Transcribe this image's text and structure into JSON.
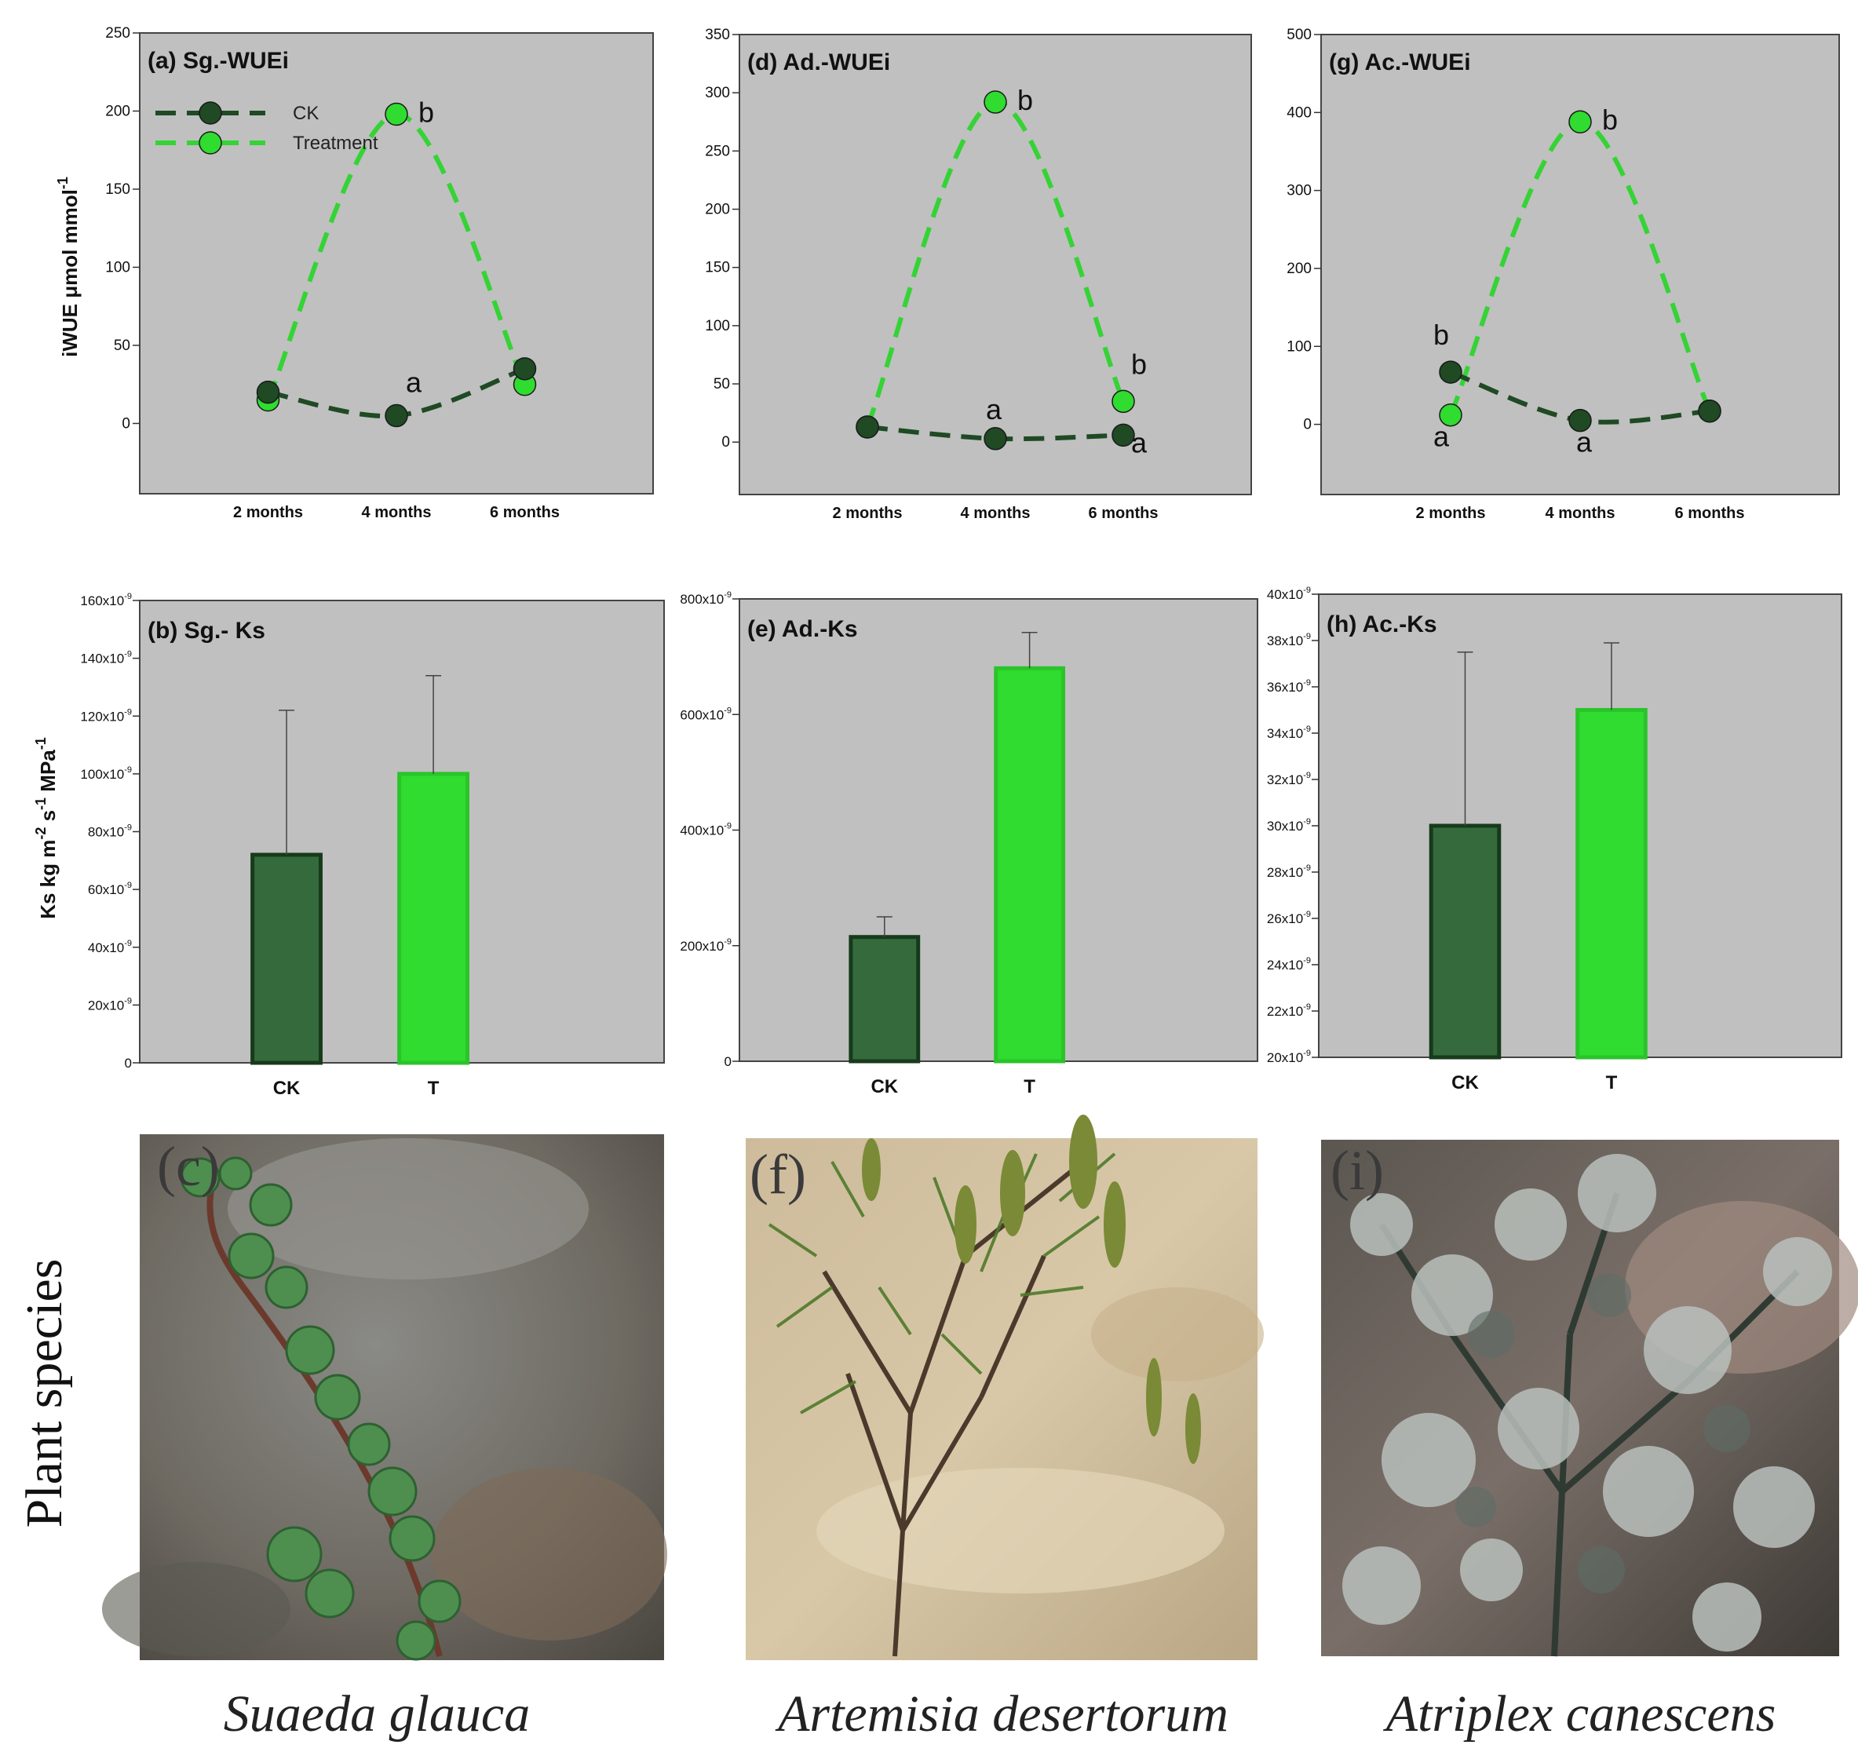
{
  "colors": {
    "ck": "#1f4a24",
    "ck_bar": "#356b3c",
    "treatment": "#2fdc2f",
    "treatment_line": "#35d335",
    "plot_bg": "#c0c0c0"
  },
  "y_labels": {
    "row1": "iWUE   μmol mmol",
    "row1_sup": "-1",
    "row2_parts": [
      "Ks    kg m",
      "-2",
      " s",
      "-1",
      " MPa",
      "-1"
    ]
  },
  "side_label": "Plant species",
  "legend": {
    "ck": "CK",
    "treatment": "Treatment"
  },
  "chart_data": [
    {
      "id": "a",
      "type": "line",
      "title": "(a) Sg.-WUEi",
      "categories": [
        "2 months",
        "4 months",
        "6 months"
      ],
      "ylim": [
        -45,
        250
      ],
      "yticks": [
        0,
        50,
        100,
        150,
        200,
        250
      ],
      "series": [
        {
          "name": "CK",
          "values": [
            20,
            5,
            35
          ]
        },
        {
          "name": "Treatment",
          "values": [
            15,
            198,
            25
          ]
        }
      ],
      "annotations": [
        {
          "text": "b",
          "cat": 1,
          "y": 198
        },
        {
          "text": "a",
          "cat": 1,
          "y": 5
        }
      ]
    },
    {
      "id": "d",
      "type": "line",
      "title": "(d) Ad.-WUEi",
      "categories": [
        "2 months",
        "4 months",
        "6 months"
      ],
      "ylim": [
        -45,
        350
      ],
      "yticks": [
        0,
        50,
        100,
        150,
        200,
        250,
        300,
        350
      ],
      "series": [
        {
          "name": "CK",
          "values": [
            13,
            3,
            6
          ]
        },
        {
          "name": "Treatment",
          "values": [
            13,
            292,
            35
          ]
        }
      ],
      "annotations": [
        {
          "text": "b",
          "cat": 1,
          "y": 292
        },
        {
          "text": "a",
          "cat": 1,
          "y": 3
        },
        {
          "text": "b",
          "cat": 2,
          "y": 35
        },
        {
          "text": "a",
          "cat": 2,
          "y": 6
        }
      ]
    },
    {
      "id": "g",
      "type": "line",
      "title": "(g) Ac.-WUEi",
      "categories": [
        "2 months",
        "4 months",
        "6 months"
      ],
      "ylim": [
        -90,
        500
      ],
      "yticks": [
        0,
        100,
        200,
        300,
        400,
        500
      ],
      "series": [
        {
          "name": "CK",
          "values": [
            67,
            5,
            17
          ]
        },
        {
          "name": "Treatment",
          "values": [
            12,
            388,
            17
          ]
        }
      ],
      "annotations": [
        {
          "text": "b",
          "cat": 0,
          "y": 67
        },
        {
          "text": "a",
          "cat": 0,
          "y": 12
        },
        {
          "text": "b",
          "cat": 1,
          "y": 388
        },
        {
          "text": "a",
          "cat": 1,
          "y": 5
        }
      ]
    },
    {
      "id": "b",
      "type": "bar",
      "title": "(b) Sg.- Ks",
      "categories": [
        "CK",
        "T"
      ],
      "ylim": [
        0,
        160
      ],
      "yticks": [
        0,
        20,
        40,
        60,
        80,
        100,
        120,
        140,
        160
      ],
      "ytick_mantissas": [
        "0",
        "20",
        "40",
        "60",
        "80",
        "100",
        "120",
        "140",
        "160"
      ],
      "ytick_exponent": "-9",
      "values": [
        72,
        100
      ],
      "errors": [
        50,
        34
      ]
    },
    {
      "id": "e",
      "type": "bar",
      "title": "(e) Ad.-Ks",
      "categories": [
        "CK",
        "T"
      ],
      "ylim": [
        0,
        800
      ],
      "yticks": [
        0,
        200,
        400,
        600,
        800
      ],
      "ytick_mantissas": [
        "0",
        "200",
        "400",
        "600",
        "800"
      ],
      "ytick_exponent": "-9",
      "values": [
        215,
        680
      ],
      "errors": [
        35,
        62
      ]
    },
    {
      "id": "h",
      "type": "bar",
      "title": "(h) Ac.-Ks",
      "categories": [
        "CK",
        "T"
      ],
      "ylim": [
        20,
        40
      ],
      "yticks": [
        20,
        22,
        24,
        26,
        28,
        30,
        32,
        34,
        36,
        38,
        40
      ],
      "ytick_mantissas": [
        "20",
        "22",
        "24",
        "26",
        "28",
        "30",
        "32",
        "34",
        "36",
        "38",
        "40"
      ],
      "ytick_exponent": "-9",
      "values": [
        30,
        35
      ],
      "errors": [
        7.5,
        2.9
      ]
    }
  ],
  "photos": [
    {
      "letter": "(c)",
      "species": "Suaeda glauca"
    },
    {
      "letter": "(f)",
      "species": "Artemisia desertorum"
    },
    {
      "letter": "(i)",
      "species": "Atriplex canescens"
    }
  ]
}
